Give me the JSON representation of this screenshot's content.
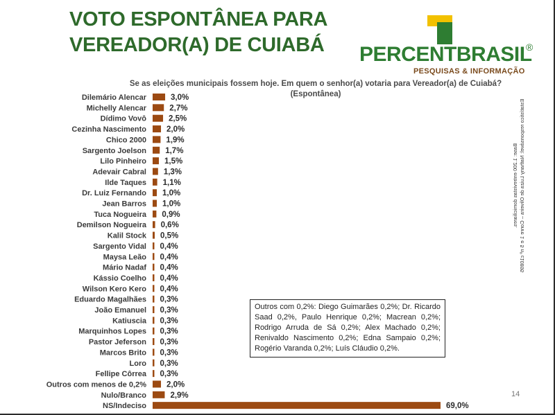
{
  "title": "VOTO ESPONTÂNEA PARA\nVEREADOR(A) DE CUIABÁ",
  "logo": {
    "word_part1": "PERCENT",
    "word_part2": "BRASIL",
    "registered": "®",
    "tagline": "PESQUISAS & INFORMAÇÃO",
    "colors": {
      "green": "#2e7d32",
      "brown": "#7a4a1c",
      "yellow": "#f2c100"
    }
  },
  "question": {
    "line1": "Se as eleições municipais fossem hoje. Em quem o senhor(a) votaria para  Vereador(a) de Cuiabá?",
    "line2": "(Espontânea)"
  },
  "chart_data": {
    "type": "bar",
    "orientation": "horizontal",
    "categories": [
      "Dilemário Alencar",
      "Michelly Alencar",
      "Dídimo Vovô",
      "Cezinha Nascimento",
      "Chico 2000",
      "Sargento Joelson",
      "Lilo Pinheiro",
      "Adevair Cabral",
      "Ilde Taques",
      "Dr. Luiz Fernando",
      "Jean Barros",
      "Tuca Nogueira",
      "Demilson Nogueira",
      "Kalil Stock",
      "Sargento Vidal",
      "Maysa Leão",
      "Mário Nadaf",
      "Kássio Coelho",
      "Wilson Kero Kero",
      "Eduardo Magalhães",
      "João Emanuel",
      "Katiuscia",
      "Marquinhos Lopes",
      "Pastor Jeferson",
      "Marcos Brito",
      "Loro",
      "Fellipe Côrrea",
      "Outros com menos de 0,2%",
      "Nulo/Branco",
      "NS/Indeciso"
    ],
    "values": [
      3.0,
      2.7,
      2.5,
      2.0,
      1.9,
      1.7,
      1.5,
      1.3,
      1.1,
      1.0,
      1.0,
      0.9,
      0.6,
      0.5,
      0.4,
      0.4,
      0.4,
      0.4,
      0.4,
      0.3,
      0.3,
      0.3,
      0.3,
      0.3,
      0.3,
      0.3,
      0.3,
      2.0,
      2.9,
      69.0
    ],
    "value_labels": [
      "3,0%",
      "2,7%",
      "2,5%",
      "2,0%",
      "1,9%",
      "1,7%",
      "1,5%",
      "1,3%",
      "1,1%",
      "1,0%",
      "1,0%",
      "0,9%",
      "0,6%",
      "0,5%",
      "0,4%",
      "0,4%",
      "0,4%",
      "0,4%",
      "0,4%",
      "0,3%",
      "0,3%",
      "0,3%",
      "0,3%",
      "0,3%",
      "0,3%",
      "0,3%",
      "0,3%",
      "2,0%",
      "2,9%",
      "69,0%"
    ],
    "bar_color": "#9c4a12",
    "title": "",
    "xlabel": "",
    "ylabel": "",
    "grid": false,
    "legend": "none"
  },
  "outros_note": "Outros com 0,2%: Diego Guimarães 0,2%; Dr. Ricardo Saad 0,2%, Paulo Henrique 0,2%; Macrean 0,2%; Rodrigo Arruda de Sá 0,2%; Alex Machado 0,2%; Renivaldo Nascimento 0,2%; Edna Sampaio 0,2%; Rogério Varanda 0,2%; Luís Cláudio 0,2%.",
  "base_note": {
    "line1": "Base: 1.200 entrevistas domiciliares.",
    "line2": "Estatístico responsável: Nathany Luiza de Oliveira – Conre 1 e 5 nº c10895"
  },
  "page_number": "14"
}
